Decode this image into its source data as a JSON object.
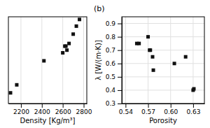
{
  "chart_data": [
    {
      "type": "scatter",
      "x": [
        2100,
        2160,
        2420,
        2600,
        2620,
        2630,
        2640,
        2660,
        2700,
        2730,
        2760
      ],
      "values": [
        0.38,
        0.44,
        0.62,
        0.68,
        0.73,
        0.73,
        0.7,
        0.75,
        0.82,
        0.88,
        0.93
      ],
      "xlabel": "Density [Kg/m³]",
      "xlim": [
        2080,
        2830
      ],
      "xticks": [
        2200,
        2400,
        2600,
        2800
      ],
      "ylim": [
        0.3,
        0.95
      ],
      "grid": true,
      "tick_labels": "x",
      "color": "#111111",
      "marker": "square"
    },
    {
      "type": "scatter",
      "title": "(b)",
      "x": [
        0.555,
        0.558,
        0.57,
        0.572,
        0.573,
        0.576,
        0.577,
        0.605,
        0.62,
        0.63,
        0.631
      ],
      "values": [
        0.75,
        0.75,
        0.8,
        0.7,
        0.7,
        0.65,
        0.55,
        0.6,
        0.65,
        0.4,
        0.41
      ],
      "xlabel": "Porosity",
      "ylabel": "λ [W/(m·K)]",
      "xlim": [
        0.535,
        0.645
      ],
      "xticks": [
        0.54,
        0.57,
        {
          "value": 0.6,
          "label": "0.60"
        },
        0.63
      ],
      "ylim": [
        0.3,
        0.95
      ],
      "yticks": [
        0.3,
        0.4,
        0.5,
        0.6,
        0.7,
        0.8,
        0.9
      ],
      "grid": true,
      "color": "#111111",
      "marker": "square"
    }
  ]
}
